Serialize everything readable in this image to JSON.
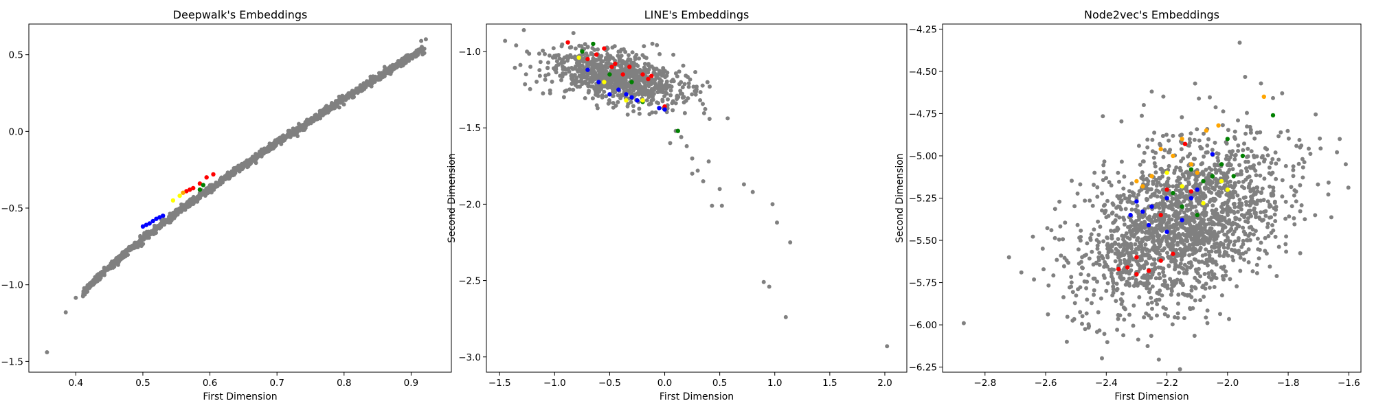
{
  "point_color": "#808080",
  "colors": {
    "red": "#ff0000",
    "blue": "#0000ff",
    "green": "#008000",
    "yellow": "#ffff00",
    "orange": "#ffa500"
  },
  "chart_data": [
    {
      "type": "scatter",
      "title": "Deepwalk's Embeddings",
      "xlabel": "First Dimension",
      "ylabel": "Second Dimension",
      "xlim": [
        0.33,
        0.96
      ],
      "ylim": [
        -1.57,
        0.7
      ],
      "xticks": [
        0.4,
        0.5,
        0.6,
        0.7,
        0.8,
        0.9
      ],
      "yticks": [
        -1.5,
        -1.0,
        -0.5,
        0.0,
        0.5
      ],
      "xtick_labels": [
        "0.4",
        "0.5",
        "0.6",
        "0.7",
        "0.8",
        "0.9"
      ],
      "ytick_labels": [
        "−1.5",
        "−1.0",
        "−0.5",
        "0.0",
        "0.5"
      ],
      "grid": false,
      "generator": {
        "kind": "curve",
        "seed": 11,
        "count": 1400,
        "xmin": 0.41,
        "xmax": 0.92,
        "a": -1.07,
        "b": 0.54,
        "spread": 0.012
      },
      "outliers": [
        [
          0.357,
          -1.44
        ],
        [
          0.385,
          -1.18
        ],
        [
          0.4,
          -1.085
        ],
        [
          0.915,
          0.59
        ],
        [
          0.922,
          0.6
        ]
      ],
      "highlighted": [
        {
          "color": "blue",
          "points": [
            [
              0.5,
              -0.62
            ],
            [
              0.51,
              -0.6
            ],
            [
              0.52,
              -0.57
            ],
            [
              0.53,
              -0.55
            ],
            [
              0.505,
              -0.61
            ],
            [
              0.515,
              -0.585
            ],
            [
              0.525,
              -0.56
            ]
          ]
        },
        {
          "color": "red",
          "points": [
            [
              0.565,
              -0.39
            ],
            [
              0.575,
              -0.37
            ],
            [
              0.585,
              -0.34
            ],
            [
              0.595,
              -0.3
            ],
            [
              0.605,
              -0.28
            ],
            [
              0.57,
              -0.38
            ]
          ]
        },
        {
          "color": "yellow",
          "points": [
            [
              0.545,
              -0.45
            ],
            [
              0.555,
              -0.42
            ]
          ]
        },
        {
          "color": "green",
          "points": [
            [
              0.585,
              -0.38
            ],
            [
              0.59,
              -0.35
            ]
          ]
        },
        {
          "color": "orange",
          "points": [
            [
              0.56,
              -0.4
            ]
          ]
        }
      ]
    },
    {
      "type": "scatter",
      "title": "LINE's Embeddings",
      "xlabel": "First Dimension",
      "ylabel": "Second Dimension",
      "xlim": [
        -1.62,
        2.2
      ],
      "ylim": [
        -3.1,
        -0.82
      ],
      "xticks": [
        -1.5,
        -1.0,
        -0.5,
        0.0,
        0.5,
        1.0,
        1.5,
        2.0
      ],
      "yticks": [
        -3.0,
        -2.5,
        -2.0,
        -1.5,
        -1.0
      ],
      "xtick_labels": [
        "−1.5",
        "−1.0",
        "−0.5",
        "0.0",
        "0.5",
        "1.0",
        "1.5",
        "2.0"
      ],
      "ytick_labels": [
        "−3.0",
        "−2.5",
        "−2.0",
        "−1.5",
        "−1.0"
      ],
      "grid": false,
      "generator": {
        "kind": "gaussian",
        "seed": 23,
        "count": 900,
        "cx": -0.45,
        "cy": -1.17,
        "sx": 0.3,
        "sy": 0.09,
        "rho": -0.45
      },
      "outliers": [
        [
          -1.45,
          -0.93
        ],
        [
          -1.28,
          -0.86
        ],
        [
          -1.22,
          -1.1
        ],
        [
          -1.35,
          -0.96
        ],
        [
          0.1,
          -1.52
        ],
        [
          0.15,
          -1.56
        ],
        [
          0.2,
          -1.62
        ],
        [
          0.05,
          -1.6
        ],
        [
          0.25,
          -1.7
        ],
        [
          0.3,
          -1.78
        ],
        [
          0.4,
          -1.72
        ],
        [
          0.35,
          -1.85
        ],
        [
          0.25,
          -1.8
        ],
        [
          0.5,
          -1.9
        ],
        [
          0.43,
          -2.01
        ],
        [
          0.52,
          -2.01
        ],
        [
          0.72,
          -1.87
        ],
        [
          0.8,
          -1.92
        ],
        [
          0.98,
          -2.0
        ],
        [
          1.02,
          -2.12
        ],
        [
          1.14,
          -2.25
        ],
        [
          0.9,
          -2.51
        ],
        [
          0.95,
          -2.54
        ],
        [
          1.1,
          -2.74
        ],
        [
          2.02,
          -2.93
        ]
      ],
      "highlighted": [
        {
          "color": "red",
          "points": [
            [
              -0.88,
              -0.94
            ],
            [
              -0.62,
              -1.02
            ],
            [
              -0.48,
              -1.1
            ],
            [
              -0.38,
              -1.15
            ],
            [
              -0.32,
              -1.1
            ],
            [
              -0.2,
              -1.15
            ],
            [
              -0.15,
              -1.18
            ],
            [
              -0.7,
              -1.05
            ],
            [
              -0.55,
              -0.98
            ],
            [
              -0.12,
              -1.16
            ],
            [
              0.0,
              -1.36
            ],
            [
              -0.45,
              -1.08
            ]
          ]
        },
        {
          "color": "blue",
          "points": [
            [
              -0.7,
              -1.12
            ],
            [
              -0.6,
              -1.2
            ],
            [
              -0.42,
              -1.25
            ],
            [
              -0.3,
              -1.3
            ],
            [
              -0.25,
              -1.32
            ],
            [
              -0.5,
              -1.28
            ],
            [
              -0.05,
              -1.37
            ],
            [
              0.0,
              -1.38
            ],
            [
              -0.35,
              -1.28
            ]
          ]
        },
        {
          "color": "green",
          "points": [
            [
              -0.75,
              -1.0
            ],
            [
              -0.5,
              -1.15
            ],
            [
              -0.3,
              -1.2
            ],
            [
              -0.2,
              -1.33
            ],
            [
              0.12,
              -1.52
            ],
            [
              -0.65,
              -0.95
            ]
          ]
        },
        {
          "color": "yellow",
          "points": [
            [
              -0.78,
              -1.04
            ],
            [
              -0.55,
              -1.2
            ],
            [
              -0.35,
              -1.32
            ],
            [
              -0.2,
              -1.32
            ]
          ]
        }
      ]
    },
    {
      "type": "scatter",
      "title": "Node2vec's Embeddings",
      "xlabel": "First Dimension",
      "ylabel": "Second Dimension",
      "xlim": [
        -2.94,
        -1.56
      ],
      "ylim": [
        -6.28,
        -4.22
      ],
      "xticks": [
        -2.8,
        -2.6,
        -2.4,
        -2.2,
        -2.0,
        -1.8,
        -1.6
      ],
      "yticks": [
        -6.25,
        -6.0,
        -5.75,
        -5.5,
        -5.25,
        -5.0,
        -4.75,
        -4.5,
        -4.25
      ],
      "xtick_labels": [
        "−2.8",
        "−2.6",
        "−2.4",
        "−2.2",
        "−2.0",
        "−1.8",
        "−1.6"
      ],
      "ytick_labels": [
        "−6.25",
        "−6.00",
        "−5.75",
        "−5.50",
        "−5.25",
        "−5.00",
        "−4.75",
        "−4.50",
        "−4.25"
      ],
      "grid": false,
      "generator": {
        "kind": "gaussian",
        "seed": 37,
        "count": 1900,
        "cx": -2.15,
        "cy": -5.4,
        "sx": 0.17,
        "sy": 0.26,
        "rho": 0.42
      },
      "outliers": [
        [
          -2.87,
          -5.99
        ],
        [
          -2.68,
          -5.69
        ],
        [
          -2.53,
          -6.1
        ],
        [
          -1.96,
          -4.33
        ],
        [
          -1.63,
          -4.9
        ],
        [
          -1.61,
          -5.05
        ],
        [
          -1.82,
          -4.63
        ],
        [
          -2.25,
          -4.62
        ]
      ],
      "highlighted": [
        {
          "color": "orange",
          "points": [
            [
              -1.88,
              -4.65
            ],
            [
              -2.03,
              -4.82
            ],
            [
              -2.07,
              -4.85
            ],
            [
              -2.15,
              -4.9
            ],
            [
              -2.22,
              -4.96
            ],
            [
              -2.18,
              -5.0
            ],
            [
              -2.12,
              -5.05
            ],
            [
              -2.25,
              -5.12
            ],
            [
              -2.3,
              -5.15
            ],
            [
              -2.28,
              -5.18
            ],
            [
              -2.1,
              -5.1
            ]
          ]
        },
        {
          "color": "green",
          "points": [
            [
              -1.85,
              -4.76
            ],
            [
              -2.0,
              -4.9
            ],
            [
              -1.95,
              -5.0
            ],
            [
              -2.02,
              -5.05
            ],
            [
              -2.05,
              -5.12
            ],
            [
              -2.08,
              -5.15
            ],
            [
              -2.12,
              -5.08
            ],
            [
              -2.18,
              -5.22
            ],
            [
              -2.15,
              -5.3
            ],
            [
              -2.1,
              -5.35
            ],
            [
              -1.98,
              -5.12
            ]
          ]
        },
        {
          "color": "blue",
          "points": [
            [
              -2.05,
              -4.99
            ],
            [
              -2.1,
              -5.2
            ],
            [
              -2.2,
              -5.25
            ],
            [
              -2.25,
              -5.3
            ],
            [
              -2.28,
              -5.33
            ],
            [
              -2.15,
              -5.38
            ],
            [
              -2.3,
              -5.27
            ],
            [
              -2.2,
              -5.45
            ],
            [
              -2.32,
              -5.35
            ],
            [
              -2.12,
              -5.25
            ],
            [
              -2.26,
              -5.41
            ]
          ]
        },
        {
          "color": "red",
          "points": [
            [
              -2.14,
              -4.93
            ],
            [
              -2.2,
              -5.2
            ],
            [
              -2.22,
              -5.35
            ],
            [
              -2.3,
              -5.6
            ],
            [
              -2.33,
              -5.66
            ],
            [
              -2.26,
              -5.68
            ],
            [
              -2.22,
              -5.62
            ],
            [
              -2.18,
              -5.58
            ],
            [
              -2.36,
              -5.67
            ],
            [
              -2.3,
              -5.7
            ],
            [
              -2.12,
              -5.21
            ]
          ]
        },
        {
          "color": "yellow",
          "points": [
            [
              -2.02,
              -5.15
            ],
            [
              -2.08,
              -5.28
            ],
            [
              -2.2,
              -5.1
            ],
            [
              -2.15,
              -5.18
            ],
            [
              -2.0,
              -5.2
            ]
          ]
        }
      ]
    }
  ]
}
